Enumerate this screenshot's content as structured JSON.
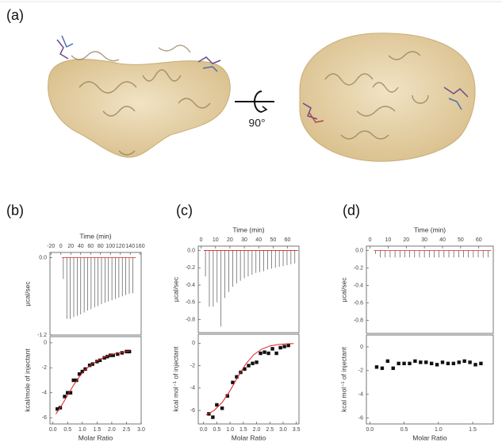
{
  "panel_labels": [
    "(a)",
    "(b)",
    "(c)",
    "(d)"
  ],
  "rotation_label": "90°",
  "chart_data": [
    {
      "type": "spike",
      "xlabel": "Time (min)",
      "ylabel": "µcal/sec",
      "color": "#555555",
      "baseline_color": "#e02020",
      "xlim": [
        -22,
        162
      ],
      "xticks": [
        -20,
        0,
        20,
        40,
        60,
        80,
        100,
        120,
        140,
        160
      ],
      "ylim": [
        -1.2,
        0.08
      ],
      "yticks": [
        {
          "value": 0,
          "label": "0.0"
        },
        -1.2
      ],
      "x": [
        5,
        12,
        19,
        26,
        33,
        40,
        47,
        54,
        61,
        68,
        75,
        82,
        89,
        96,
        103,
        110,
        117,
        124,
        131,
        138,
        145
      ],
      "values": [
        -0.33,
        -0.95,
        -0.95,
        -0.92,
        -0.9,
        -0.88,
        -0.85,
        -0.82,
        -0.8,
        -0.77,
        -0.75,
        -0.72,
        -0.7,
        -0.68,
        -0.66,
        -0.64,
        -0.62,
        -0.6,
        -0.58,
        -0.56,
        -0.55
      ]
    },
    {
      "type": "scatter",
      "xlabel": "Molar Ratio",
      "ylabel": "kcal/mole of injectant",
      "xlim": [
        -0.1,
        3.0
      ],
      "xticks": [
        {
          "value": 0,
          "label": "0.0"
        },
        0.5,
        {
          "value": 1,
          "label": "1.0"
        },
        1.5,
        {
          "value": 2,
          "label": "2.0"
        },
        2.5,
        {
          "value": 3,
          "label": "3.0"
        }
      ],
      "ylim": [
        -6.5,
        0.5
      ],
      "yticks": [
        0,
        -2,
        -4,
        -6
      ],
      "series": [
        {
          "mode": "markers",
          "color": "#111111",
          "x": [
            0.15,
            0.25,
            0.4,
            0.5,
            0.6,
            0.7,
            0.8,
            0.9,
            1.0,
            1.1,
            1.25,
            1.35,
            1.5,
            1.6,
            1.75,
            1.85,
            1.95,
            2.05,
            2.2,
            2.35,
            2.5,
            2.6
          ],
          "values": [
            -5.3,
            -5.2,
            -4.3,
            -4.0,
            -4.0,
            -3.0,
            -3.0,
            -2.5,
            -2.3,
            -2.1,
            -1.8,
            -1.7,
            -1.5,
            -1.4,
            -1.2,
            -1.1,
            -1.0,
            -1.0,
            -0.9,
            -0.8,
            -0.7,
            -0.7
          ]
        },
        {
          "mode": "line",
          "color": "#e02020",
          "x": [
            0.1,
            0.3,
            0.5,
            0.7,
            0.9,
            1.1,
            1.3,
            1.5,
            1.7,
            1.9,
            2.1,
            2.3,
            2.5,
            2.6
          ],
          "values": [
            -5.7,
            -5.0,
            -4.2,
            -3.4,
            -2.7,
            -2.15,
            -1.75,
            -1.45,
            -1.2,
            -1.0,
            -0.88,
            -0.78,
            -0.7,
            -0.67
          ]
        }
      ]
    },
    {
      "type": "spike",
      "xlabel": "Time (min)",
      "ylabel": "µcal/sec",
      "color": "#555555",
      "baseline_color": "#e02020",
      "xlim": [
        -2,
        68
      ],
      "xticks": [
        0,
        10,
        20,
        30,
        40,
        50,
        60
      ],
      "ylim": [
        -0.95,
        0.05
      ],
      "yticks": [
        {
          "value": 0,
          "label": "0.0"
        },
        -0.2,
        -0.4,
        -0.6,
        -0.8
      ],
      "x": [
        3,
        5.7,
        8.4,
        11.1,
        13.8,
        16.5,
        19.2,
        21.9,
        24.6,
        27.3,
        30,
        32.7,
        35.4,
        38.1,
        40.8,
        43.5,
        46.2,
        48.9,
        51.6,
        54.3,
        57,
        59.7,
        62.4,
        65.1
      ],
      "values": [
        -0.3,
        -0.65,
        -0.65,
        -0.6,
        -0.88,
        -0.55,
        -0.48,
        -0.42,
        -0.38,
        -0.35,
        -0.32,
        -0.3,
        -0.28,
        -0.26,
        -0.25,
        -0.24,
        -0.22,
        -0.21,
        -0.2,
        -0.19,
        -0.18,
        -0.17,
        -0.16,
        -0.15
      ]
    },
    {
      "type": "scatter",
      "xlabel": "Molar Ratio",
      "ylabel": "kcal mol⁻¹ of injectant",
      "xlim": [
        -0.2,
        3.6
      ],
      "xticks": [
        {
          "value": 0,
          "label": "0.0"
        },
        0.5,
        {
          "value": 1,
          "label": "1.0"
        },
        1.5,
        {
          "value": 2,
          "label": "2.0"
        },
        2.5,
        {
          "value": 3,
          "label": "3.0"
        },
        3.5
      ],
      "ylim": [
        -7.2,
        0.8
      ],
      "yticks": [
        0,
        -2,
        -4,
        -6
      ],
      "series": [
        {
          "mode": "markers",
          "color": "#111111",
          "x": [
            0.2,
            0.35,
            0.5,
            0.7,
            0.9,
            1.1,
            1.25,
            1.4,
            1.55,
            1.7,
            1.85,
            2.0,
            2.15,
            2.3,
            2.45,
            2.6,
            2.75,
            2.9,
            3.05,
            3.2
          ],
          "values": [
            -6.3,
            -6.6,
            -5.5,
            -5.8,
            -4.7,
            -3.5,
            -3.0,
            -2.6,
            -2.3,
            -2.0,
            -1.8,
            -1.7,
            -0.9,
            -0.8,
            -0.9,
            -0.5,
            -0.9,
            -0.4,
            -0.3,
            -0.2
          ]
        },
        {
          "mode": "line",
          "color": "#e02020",
          "x": [
            0.1,
            0.4,
            0.7,
            1.0,
            1.3,
            1.6,
            1.9,
            2.2,
            2.5,
            2.8,
            3.1,
            3.4
          ],
          "values": [
            -6.39,
            -5.99,
            -5.29,
            -4.23,
            -2.98,
            -1.83,
            -1.01,
            -0.52,
            -0.25,
            -0.12,
            -0.06,
            -0.03
          ]
        }
      ]
    },
    {
      "type": "spike",
      "xlabel": "Time (min)",
      "ylabel": "µcal/sec",
      "color": "#555555",
      "baseline_color": "#e02020",
      "xlim": [
        -2,
        68
      ],
      "xticks": [
        0,
        10,
        20,
        30,
        40,
        50,
        60
      ],
      "ylim": [
        -0.95,
        0.05
      ],
      "yticks": [
        {
          "value": 0,
          "label": "0.0"
        },
        -0.2,
        -0.4,
        -0.6,
        -0.8
      ],
      "x": [
        3,
        5.7,
        8.4,
        11.1,
        13.8,
        16.5,
        19.2,
        21.9,
        24.6,
        27.3,
        30,
        32.7,
        35.4,
        38.1,
        40.8,
        43.5,
        46.2,
        48.9,
        51.6,
        54.3,
        57,
        59.7,
        62.4,
        65.1
      ],
      "values": [
        -0.04,
        -0.08,
        -0.08,
        -0.08,
        -0.08,
        -0.08,
        -0.08,
        -0.08,
        -0.08,
        -0.08,
        -0.08,
        -0.08,
        -0.08,
        -0.08,
        -0.08,
        -0.08,
        -0.08,
        -0.08,
        -0.08,
        -0.08,
        -0.08,
        -0.08,
        -0.08,
        -0.08
      ]
    },
    {
      "type": "scatter",
      "xlabel": "Molar Ratio",
      "ylabel": "kcal mol⁻¹ of injectant",
      "xlim": [
        -0.05,
        1.8
      ],
      "xticks": [
        {
          "value": 0,
          "label": "0.0"
        },
        0.5,
        {
          "value": 1,
          "label": "1.0"
        },
        1.5
      ],
      "ylim": [
        -6.5,
        1
      ],
      "yticks": [
        0,
        -2,
        -4,
        -6
      ],
      "series": [
        {
          "mode": "markers",
          "color": "#111111",
          "x": [
            0.1,
            0.18,
            0.26,
            0.34,
            0.42,
            0.5,
            0.58,
            0.66,
            0.74,
            0.82,
            0.9,
            0.98,
            1.06,
            1.14,
            1.22,
            1.3,
            1.38,
            1.46,
            1.54,
            1.62
          ],
          "values": [
            -1.7,
            -1.8,
            -1.2,
            -1.8,
            -1.4,
            -1.4,
            -1.4,
            -1.2,
            -1.3,
            -1.3,
            -1.4,
            -1.5,
            -1.3,
            -1.4,
            -1.4,
            -1.3,
            -1.2,
            -1.3,
            -1.5,
            -1.4
          ]
        }
      ]
    }
  ]
}
